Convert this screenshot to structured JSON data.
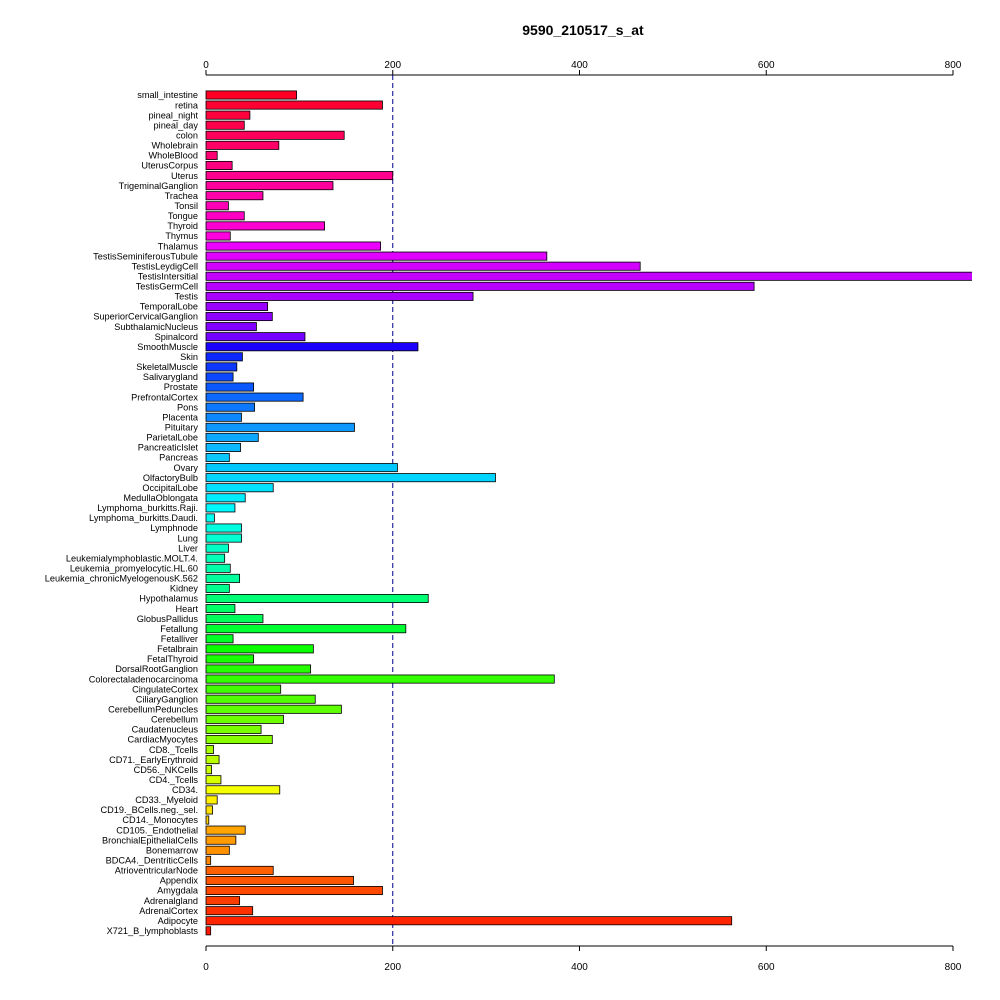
{
  "chart_data": {
    "type": "bar",
    "orientation": "horizontal",
    "title": "9590_210517_s_at",
    "xlabel": "",
    "ylabel": "",
    "xlim": [
      0,
      800
    ],
    "x_ticks": [
      0,
      200,
      400,
      600,
      800
    ],
    "axes": [
      "top",
      "bottom"
    ],
    "grid": false,
    "reference_line": {
      "x": 200,
      "style": "dashed",
      "color": "#00008b"
    },
    "categories": [
      "small_intestine",
      "retina",
      "pineal_night",
      "pineal_day",
      "colon",
      "Wholebrain",
      "WholeBlood",
      "UterusCorpus",
      "Uterus",
      "TrigeminalGanglion",
      "Trachea",
      "Tonsil",
      "Tongue",
      "Thyroid",
      "Thymus",
      "Thalamus",
      "TestisSeminiferousTubule",
      "TestisLeydigCell",
      "TestisIntersitial",
      "TestisGermCell",
      "Testis",
      "TemporalLobe",
      "SuperiorCervicalGanglion",
      "SubthalamicNucleus",
      "Spinalcord",
      "SmoothMuscle",
      "Skin",
      "SkeletalMuscle",
      "Salivarygland",
      "Prostate",
      "PrefrontalCortex",
      "Pons",
      "Placenta",
      "Pituitary",
      "ParietalLobe",
      "PancreaticIslet",
      "Pancreas",
      "Ovary",
      "OlfactoryBulb",
      "OccipitalLobe",
      "MedullaOblongata",
      "Lymphoma_burkitts.Raji.",
      "Lymphoma_burkitts.Daudi.",
      "Lymphnode",
      "Lung",
      "Liver",
      "Leukemialymphoblastic.MOLT.4.",
      "Leukemia_promyelocytic.HL.60",
      "Leukemia_chronicMyelogenousK.562",
      "Kidney",
      "Hypothalamus",
      "Heart",
      "GlobusPallidus",
      "Fetallung",
      "Fetalliver",
      "Fetalbrain",
      "FetalThyroid",
      "DorsalRootGanglion",
      "Colorectaladenocarcinoma",
      "CingulateCortex",
      "CiliaryGanglion",
      "CerebellumPeduncles",
      "Cerebellum",
      "Caudatenucleus",
      "CardiacMyocytes",
      "CD8._Tcells",
      "CD71._EarlyErythroid",
      "CD56._NKCells",
      "CD4._Tcells",
      "CD34.",
      "CD33._Myeloid",
      "CD19._BCells.neg._sel.",
      "CD14._Monocytes",
      "CD105._Endothelial",
      "BronchialEpithelialCells",
      "Bonemarrow",
      "BDCA4._DentriticCells",
      "AtrioventricularNode",
      "Appendix",
      "Amygdala",
      "Adrenalgland",
      "AdrenalCortex",
      "Adipocyte",
      "X721_B_lymphoblasts"
    ],
    "values": [
      97,
      189,
      47,
      41,
      148,
      78,
      12,
      28,
      200,
      136,
      61,
      24,
      41,
      127,
      26,
      187,
      365,
      465,
      822,
      587,
      286,
      66,
      71,
      54,
      106,
      227,
      39,
      33,
      29,
      51,
      104,
      52,
      38,
      159,
      56,
      37,
      25,
      205,
      310,
      72,
      42,
      31,
      9,
      38,
      38,
      24,
      20,
      26,
      36,
      25,
      238,
      31,
      61,
      214,
      29,
      115,
      51,
      112,
      373,
      80,
      117,
      145,
      83,
      59,
      71,
      8,
      14,
      6,
      16,
      79,
      12,
      7,
      3,
      42,
      32,
      25,
      5,
      72,
      158,
      189,
      36,
      50,
      563,
      5
    ],
    "colors": [
      "#ff0024",
      "#ff0032",
      "#ff003f",
      "#ff004c",
      "#ff005a",
      "#ff0067",
      "#ff0074",
      "#ff0082",
      "#ff008f",
      "#ff009c",
      "#ff00aa",
      "#ff00b7",
      "#ff00c4",
      "#ff00d2",
      "#ff00df",
      "#ec00ff",
      "#df00ff",
      "#d200ff",
      "#c400ff",
      "#b700ff",
      "#aa00ff",
      "#9c00ff",
      "#8f00ff",
      "#8200ff",
      "#7400ff",
      "#1a00ff",
      "#0c28ff",
      "#0c38ff",
      "#0c48ff",
      "#0c58ff",
      "#0c68ff",
      "#0c78ff",
      "#0c88ff",
      "#0c98ff",
      "#0ca8ff",
      "#0cb8ff",
      "#0cc8ff",
      "#00c8ff",
      "#00d4ff",
      "#00e0ff",
      "#00ecff",
      "#00f8ff",
      "#00ffee",
      "#00ffe0",
      "#00ffd2",
      "#00ffc4",
      "#00ffb7",
      "#00ffaa",
      "#00ff9c",
      "#00ff8f",
      "#00ff74",
      "#00ff67",
      "#00ff5a",
      "#00ff32",
      "#00ff24",
      "#0aff00",
      "#18ff00",
      "#26ff00",
      "#34ff00",
      "#42ff00",
      "#50ff00",
      "#5eff00",
      "#6cff00",
      "#7aff00",
      "#88ff00",
      "#a8ff00",
      "#b8ff00",
      "#c8ff00",
      "#d8ff00",
      "#f4ff00",
      "#ffef00",
      "#ffe000",
      "#ffd000",
      "#ffa400",
      "#ff9a00",
      "#ff9000",
      "#ff8600",
      "#ff6000",
      "#ff5400",
      "#ff4800",
      "#ff3c00",
      "#ff3000",
      "#ff2400",
      "#ff1800"
    ]
  }
}
